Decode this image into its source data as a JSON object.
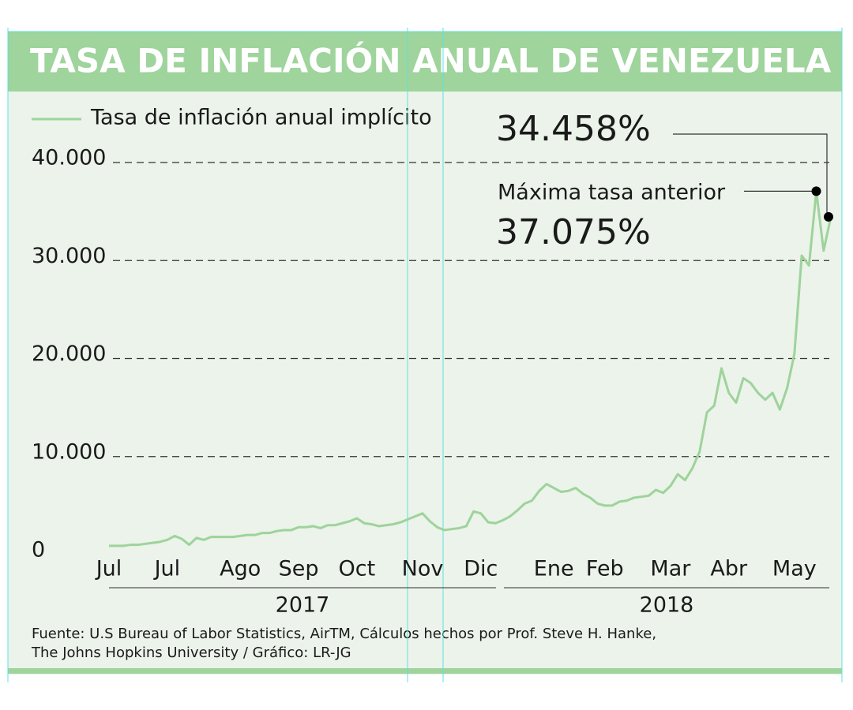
{
  "chart_data": {
    "type": "line",
    "title": "TASA DE INFLACIÓN ANUAL DE VENEZUELA",
    "categories": [
      "Jul",
      null,
      null,
      null,
      null,
      null,
      null,
      null,
      "Jul",
      null,
      null,
      null,
      null,
      null,
      null,
      null,
      null,
      null,
      "Ago",
      null,
      null,
      null,
      null,
      null,
      null,
      null,
      "Sep",
      null,
      null,
      null,
      null,
      null,
      null,
      null,
      "Oct",
      null,
      null,
      null,
      null,
      null,
      null,
      null,
      null,
      "Nov",
      null,
      null,
      null,
      null,
      null,
      null,
      null,
      "Dic",
      null,
      null,
      null,
      null,
      null,
      null,
      null,
      null,
      null,
      "Ene",
      null,
      null,
      null,
      null,
      null,
      null,
      "Feb",
      null,
      null,
      null,
      null,
      null,
      null,
      null,
      null,
      "Mar",
      null,
      null,
      null,
      null,
      null,
      null,
      null,
      "Abr",
      null,
      null,
      null,
      null,
      null,
      null,
      null,
      null,
      "May",
      null,
      null,
      null,
      null,
      null
    ],
    "series": [
      {
        "name": "Tasa de inflación anual implícito",
        "color": "#9ed39b",
        "values": [
          900,
          900,
          900,
          1000,
          1000,
          1100,
          1200,
          1300,
          1500,
          1900,
          1600,
          1000,
          1700,
          1500,
          1800,
          1800,
          1800,
          1800,
          1900,
          2000,
          2000,
          2200,
          2200,
          2400,
          2500,
          2500,
          2800,
          2800,
          2900,
          2700,
          3000,
          3000,
          3200,
          3400,
          3700,
          3200,
          3100,
          2900,
          3000,
          3100,
          3300,
          3600,
          3900,
          4200,
          3400,
          2800,
          2500,
          2600,
          2700,
          2900,
          4400,
          4200,
          3300,
          3200,
          3500,
          3900,
          4500,
          5200,
          5500,
          6500,
          7200,
          6800,
          6400,
          6500,
          6800,
          6200,
          5800,
          5200,
          5000,
          5000,
          5400,
          5500,
          5800,
          5900,
          6000,
          6600,
          6300,
          7000,
          8200,
          7600,
          8800,
          10500,
          14500,
          15200,
          19000,
          16500,
          15500,
          18000,
          17500,
          16500,
          15800,
          16500,
          14800,
          17000,
          20500,
          30500,
          29500,
          37075,
          31000,
          34458
        ]
      }
    ],
    "years": [
      "2017",
      "2018"
    ],
    "ylim": [
      0,
      40000
    ],
    "yticks": [
      0,
      {
        "value": 10000,
        "label": "10.000"
      },
      {
        "value": 20000,
        "label": "20.000"
      },
      {
        "value": 30000,
        "label": "30.000"
      },
      {
        "value": 40000,
        "label": "40.000"
      }
    ],
    "grid": true,
    "annotations": {
      "last": "34.458%",
      "previous_max_label": "Máxima tasa anterior",
      "previous_max": "37.075%"
    },
    "source": [
      "Fuente: U.S Bureau of Labor Statistics, AirTM, Cálculos hechos por Prof. Steve H. Hanke,",
      "The Johns Hopkins University / Gráfico: LR-JG"
    ]
  }
}
